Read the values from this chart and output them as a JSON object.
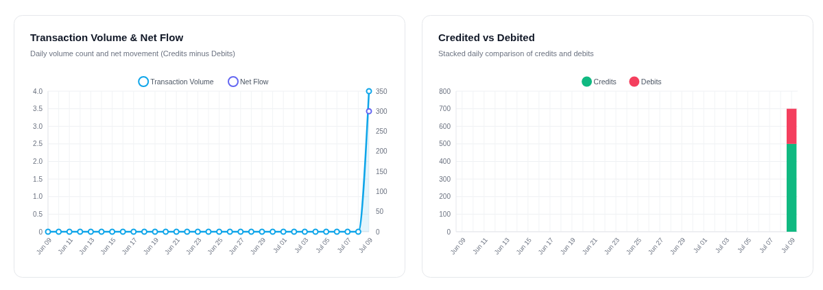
{
  "chart_data": [
    {
      "type": "line",
      "title": "Transaction Volume & Net Flow",
      "subtitle": "Daily volume count and net movement (Credits minus Debits)",
      "categories": [
        "Jun 09",
        null,
        "Jun 11",
        null,
        "Jun 13",
        null,
        "Jun 15",
        null,
        "Jun 17",
        null,
        "Jun 19",
        null,
        "Jun 21",
        null,
        "Jun 23",
        null,
        "Jun 25",
        null,
        "Jun 27",
        null,
        "Jun 29",
        null,
        "Jul 01",
        null,
        "Jul 03",
        null,
        "Jul 05",
        null,
        "Jul 07",
        null,
        "Jul 09"
      ],
      "series": [
        {
          "name": "Transaction Volume",
          "type": "area",
          "color": "#0ea5e9",
          "values": [
            0,
            0,
            0,
            0,
            0,
            0,
            0,
            0,
            0,
            0,
            0,
            0,
            0,
            0,
            0,
            0,
            0,
            0,
            0,
            0,
            0,
            0,
            0,
            0,
            0,
            0,
            0,
            0,
            0,
            0,
            4
          ]
        },
        {
          "name": "Net Flow",
          "type": "line",
          "axis": "y2",
          "color": "#6366f1",
          "values": [
            null,
            null,
            null,
            null,
            null,
            null,
            null,
            null,
            null,
            null,
            null,
            null,
            null,
            null,
            null,
            null,
            null,
            null,
            null,
            null,
            null,
            null,
            null,
            null,
            null,
            null,
            null,
            null,
            null,
            null,
            300
          ]
        }
      ],
      "ylim": [
        0,
        4
      ],
      "yticks": [
        0,
        0.5,
        {
          "value": 1,
          "label": "1.0"
        },
        1.5,
        {
          "value": 2,
          "label": "2.0"
        },
        2.5,
        {
          "value": 3,
          "label": "3.0"
        },
        3.5,
        {
          "value": 4,
          "label": "4.0"
        }
      ],
      "y2lim": [
        0,
        350
      ],
      "y2ticks": [
        0,
        50,
        100,
        150,
        200,
        250,
        300,
        350
      ],
      "grid": true,
      "legend": "top",
      "marker": "circle",
      "line_style": "solid"
    },
    {
      "type": "bar",
      "title": "Credited vs Debited",
      "subtitle": "Stacked daily comparison of credits and debits",
      "categories": [
        "Jun 09",
        null,
        "Jun 11",
        null,
        "Jun 13",
        null,
        "Jun 15",
        null,
        "Jun 17",
        null,
        "Jun 19",
        null,
        "Jun 21",
        null,
        "Jun 23",
        null,
        "Jun 25",
        null,
        "Jun 27",
        null,
        "Jun 29",
        null,
        "Jul 01",
        null,
        "Jul 03",
        null,
        "Jul 05",
        null,
        "Jul 07",
        null,
        "Jul 09"
      ],
      "series": [
        {
          "name": "Credits",
          "color": "#10b981",
          "values": [
            0,
            0,
            0,
            0,
            0,
            0,
            0,
            0,
            0,
            0,
            0,
            0,
            0,
            0,
            0,
            0,
            0,
            0,
            0,
            0,
            0,
            0,
            0,
            0,
            0,
            0,
            0,
            0,
            0,
            0,
            500
          ]
        },
        {
          "name": "Debits",
          "color": "#f43f5e",
          "values": [
            0,
            0,
            0,
            0,
            0,
            0,
            0,
            0,
            0,
            0,
            0,
            0,
            0,
            0,
            0,
            0,
            0,
            0,
            0,
            0,
            0,
            0,
            0,
            0,
            0,
            0,
            0,
            0,
            0,
            0,
            200
          ]
        }
      ],
      "stacked": true,
      "ylim": [
        0,
        800
      ],
      "yticks": [
        0,
        100,
        200,
        300,
        400,
        500,
        600,
        700,
        800
      ],
      "grid": true,
      "legend": "top"
    }
  ]
}
